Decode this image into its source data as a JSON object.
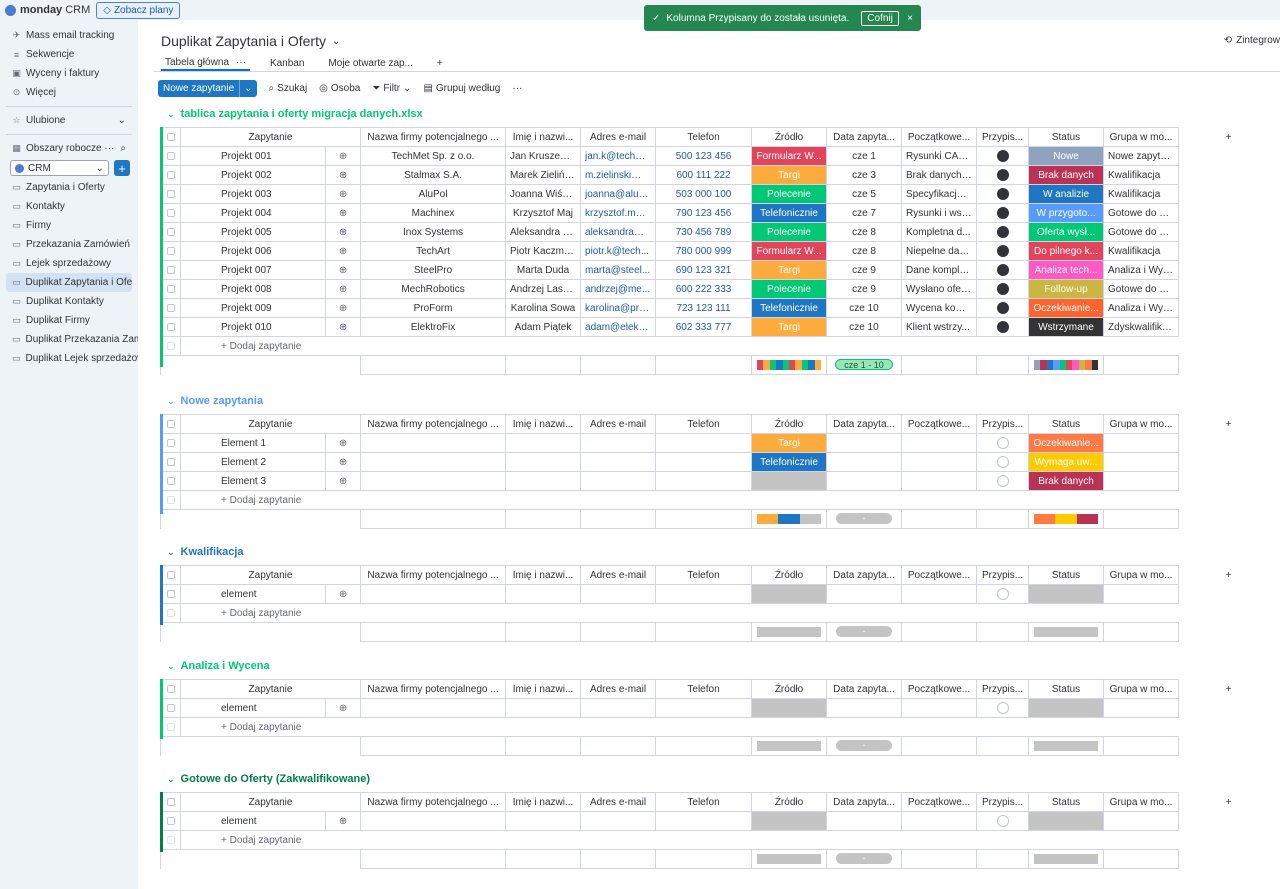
{
  "app": {
    "brand": "monday",
    "product": "CRM",
    "plans_button": "Zobacz plany"
  },
  "toast": {
    "message": "Kolumna Przypisany do została usunięta.",
    "undo": "Cofnij",
    "close": "×"
  },
  "sidebar": {
    "top_items": [
      {
        "label": "Mass email tracking",
        "icon": "send-icon"
      },
      {
        "label": "Sekwencje",
        "icon": "sequence-icon"
      },
      {
        "label": "Wyceny i faktury",
        "icon": "invoice-icon"
      },
      {
        "label": "Więcej",
        "icon": "more-circle-icon"
      }
    ],
    "favorites": "Ulubione",
    "workspaces": "Obszary robocze",
    "workspace_selected": "CRM",
    "boards": [
      "Zapytania i Oferty",
      "Kontakty",
      "Firmy",
      "Przekazania Zamówień",
      "Lejek sprzedażowy",
      "Duplikat Zapytania i Oferty",
      "Duplikat Kontakty",
      "Duplikat Firmy",
      "Duplikat Przekazania Zamówień",
      "Duplikat Lejek sprzedażowy"
    ]
  },
  "board": {
    "title": "Duplikat Zapytania i Oferty",
    "integrate": "Zintegrow",
    "views": [
      "Tabela główna",
      "Kanban",
      "Moje otwarte zap..."
    ],
    "toolbar": {
      "new_item": "Nowe zapytanie",
      "search": "Szukaj",
      "person": "Osoba",
      "filter": "Filtr",
      "group_by": "Grupuj według"
    }
  },
  "columns": [
    "Zapytanie",
    "Nazwa firmy potencjalnego ...",
    "Imię i nazwi...",
    "Adres e-mail",
    "Telefon",
    "Źródło",
    "Data zapyta...",
    "Początkowe...",
    "Przypis...",
    "Status",
    "Grupa w mo..."
  ],
  "add_item": "+ Dodaj zapytanie",
  "colors": {
    "Formularz W...": "#e2445c",
    "Targi": "#fdab3d",
    "Polecenie": "#00c875",
    "Telefonicznie": "#1f76c2",
    "Nowe": "#8fa3bf",
    "Brak danych": "#bb3354",
    "W analizie": "#1f76c2",
    "W przygoto...": "#579bfc",
    "Oferta wysł...": "#00c875",
    "Do pilnego k...": "#e2445c",
    "Analiza tech...": "#ff5ac4",
    "Follow-up": "#cab641",
    "Oczekiwanie...": "#ff7a45",
    "Wstrzymane": "#333333",
    "Wymaga uw...": "#ffcb00"
  },
  "groups": [
    {
      "title": "tablica zapytania i oferty migracja danych.xlsx",
      "color": "#00c875",
      "rows": [
        [
          "Projekt 001",
          "TechMet Sp. z o.o.",
          "Jan Kruszews...",
          "jan.k@techm...",
          "500 123 456",
          "Formularz W...",
          "cze 1",
          "Rysunki CAD,...",
          "f",
          "Nowe",
          "Nowe zapyta..."
        ],
        [
          "Projekt 002",
          "Stalmax S.A.",
          "Marek Zieliński",
          "m.zielinski@s...",
          "600 111 222",
          "Targi",
          "cze 3",
          "Brak danych, ...",
          "f",
          "Brak danych",
          "Kwalifikacja"
        ],
        [
          "Projekt 003",
          "AluPol",
          "Joanna Wiśni...",
          "joanna@alup...",
          "503 000 100",
          "Polecenie",
          "cze 5",
          "Specyfikacja ...",
          "f",
          "W analizie",
          "Kwalifikacja"
        ],
        [
          "Projekt 004",
          "Machinex",
          "Krzysztof Maj",
          "krzysztof.maj...",
          "790 123 456",
          "Telefonicznie",
          "cze 7",
          "Rysunki i wst...",
          "f",
          "W przygoto...",
          "Gotowe do O..."
        ],
        [
          "Projekt 005",
          "Inox Systems",
          "Aleksandra Kr...",
          "aleksandra@i...",
          "730 456 789",
          "Polecenie",
          "cze 8",
          "Kompletna d...",
          "f",
          "Oferta wysł...",
          "Gotowe do O..."
        ],
        [
          "Projekt 006",
          "TechArt",
          "Piotr Kaczma...",
          "piotr.k@tech...",
          "780 000 999",
          "Formularz W...",
          "cze 8",
          "Niepełne dan...",
          "f",
          "Do pilnego k...",
          "Kwalifikacja"
        ],
        [
          "Projekt 007",
          "SteelPro",
          "Marta Duda",
          "marta@steel...",
          "690 123 321",
          "Targi",
          "cze 9",
          "Dane komple...",
          "f",
          "Analiza tech...",
          "Analiza i Wyc..."
        ],
        [
          "Projekt 008",
          "MechRobotics",
          "Andrzej Lask...",
          "andrzej@me...",
          "600 222 333",
          "Polecenie",
          "cze 9",
          "Wysłano ofer...",
          "f",
          "Follow-up",
          "Gotowe do O..."
        ],
        [
          "Projekt 009",
          "ProForm",
          "Karolina Sowa",
          "karolina@pro...",
          "723 123 111",
          "Telefonicznie",
          "cze 10",
          "Wycena kom...",
          "f",
          "Oczekiwanie...",
          "Analiza i Wyc..."
        ],
        [
          "Projekt 010",
          "ElektroFix",
          "Adam Piątek",
          "adam@elektr...",
          "602 333 777",
          "Targi",
          "cze 10",
          "Klient wstrzy...",
          "f",
          "Wstrzymane",
          "Zdyskwalifiko..."
        ]
      ],
      "date_summary": "cze 1 - 10"
    },
    {
      "title": "Nowe zapytania",
      "color": "#579bfc",
      "rows": [
        [
          "Element 1",
          "",
          "",
          "",
          "",
          "Targi",
          "",
          "",
          "e",
          "Oczekiwanie...",
          ""
        ],
        [
          "Element 2",
          "",
          "",
          "",
          "",
          "Telefonicznie",
          "",
          "",
          "e",
          "Wymaga uw...",
          ""
        ],
        [
          "Element 3",
          "",
          "",
          "",
          "",
          "",
          "",
          "",
          "e",
          "Brak danych",
          ""
        ]
      ],
      "date_summary": ""
    },
    {
      "title": "Kwalifikacja",
      "color": "#1f76c2",
      "rows": [
        [
          "element",
          "",
          "",
          "",
          "",
          "",
          "",
          "",
          "e",
          "",
          ""
        ]
      ],
      "date_summary": ""
    },
    {
      "title": "Analiza i Wycena",
      "color": "#00c875",
      "rows": [
        [
          "element",
          "",
          "",
          "",
          "",
          "",
          "",
          "",
          "e",
          "",
          ""
        ]
      ],
      "date_summary": ""
    },
    {
      "title": "Gotowe do Oferty (Zakwalifikowane)",
      "color": "#037f4c",
      "rows": [
        [
          "element",
          "",
          "",
          "",
          "",
          "",
          "",
          "",
          "e",
          "",
          ""
        ]
      ],
      "date_summary": ""
    }
  ]
}
